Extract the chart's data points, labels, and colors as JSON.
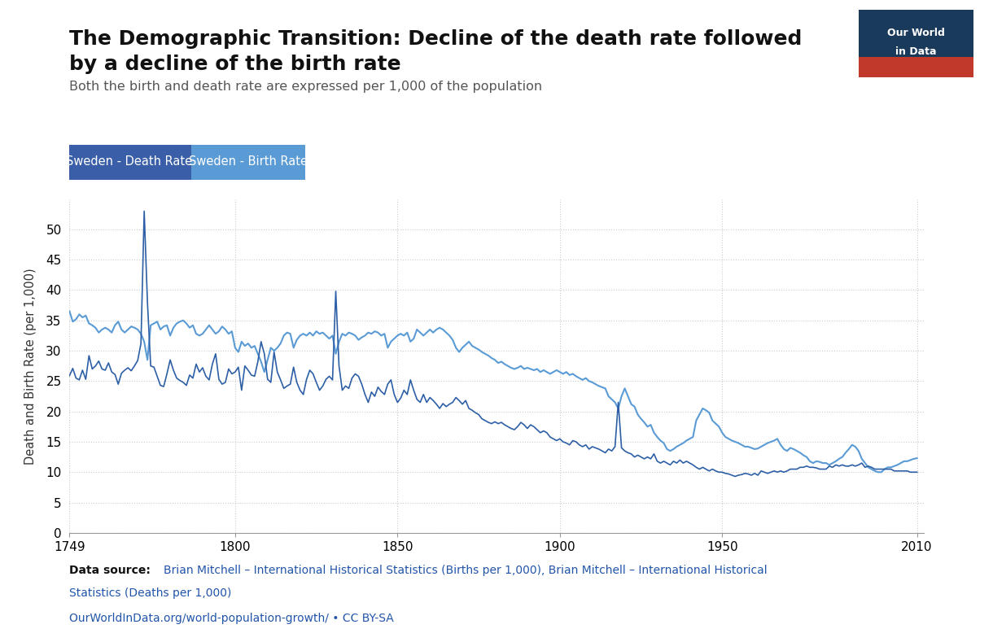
{
  "title_line1": "The Demographic Transition: Decline of the death rate followed",
  "title_line2": "by a decline of the birth rate",
  "subtitle": "Both the birth and death rate are expressed per 1,000 of the population",
  "ylabel": "Death and Birth Rate (per 1,000)",
  "death_rate_label": "Sweden - Death Rate",
  "birth_rate_label": "Sweden - Birth Rate",
  "death_rate_color": "#2D5FA6",
  "birth_rate_color": "#5B9BD5",
  "death_legend_bg": "#3A5FA8",
  "birth_legend_bg": "#5B9BD5",
  "background_color": "#ffffff",
  "grid_color": "#cccccc",
  "owid_box_top": "#1a3a5c",
  "owid_box_bottom": "#c0392b",
  "source_text": "Data source: Brian Mitchell – International Historical Statistics (Births per 1,000), Brian Mitchell – International Historical Statistics\n(Statistics (Deaths per 1,000)",
  "url_text": "OurWorldInData.org/world-population-growth/ • CC BY-SA",
  "xlim": [
    1749,
    2012
  ],
  "ylim": [
    0,
    55
  ],
  "yticks": [
    0,
    5,
    10,
    15,
    20,
    25,
    30,
    35,
    40,
    45,
    50
  ],
  "xticks": [
    1749,
    1800,
    1850,
    1900,
    1950,
    2010
  ]
}
